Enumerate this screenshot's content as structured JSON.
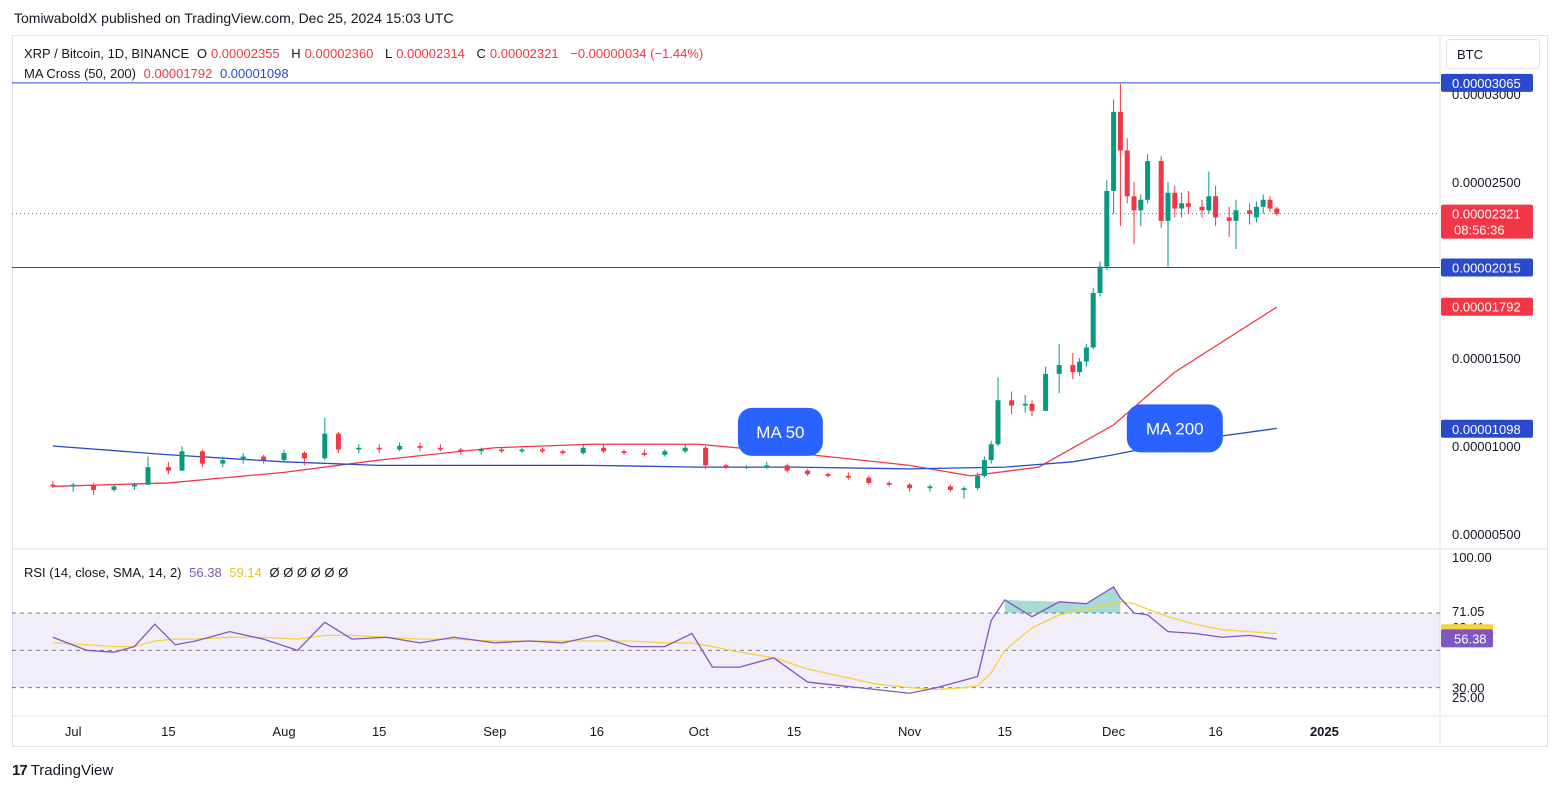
{
  "header": {
    "publisher": "TomiwaboldX published on TradingView.com, Dec 25, 2024 15:03 UTC"
  },
  "legend": {
    "symbol": "XRP / Bitcoin, 1D, BINANCE",
    "o_label": "O",
    "o_value": "0.00002355",
    "h_label": "H",
    "h_value": "0.00002360",
    "l_label": "L",
    "l_value": "0.00002314",
    "c_label": "C",
    "c_value": "0.00002321",
    "change": "−0.00000034 (−1.44%)",
    "ma_label": "MA Cross (50, 200)",
    "ma50_value": "0.00001792",
    "ma200_value": "0.00001098"
  },
  "rsi_legend": {
    "label": "RSI (14, close, SMA, 14, 2)",
    "rsi_value": "56.38",
    "sma_value": "59.14",
    "empty_values": "Ø Ø Ø Ø Ø Ø"
  },
  "currency_button": "BTC",
  "footer": {
    "brand": "TradingView",
    "brand_mark": "17"
  },
  "colors": {
    "up": "#089981",
    "down": "#f23645",
    "ma50": "#f23645",
    "ma200": "#2a4ac7",
    "rsi": "#7e57c2",
    "rsi_sma": "#f5d33b",
    "hline": "#2a4ac7"
  },
  "chart_data": {
    "type": "candlestick",
    "title": "XRP / Bitcoin, 1D, BINANCE",
    "y_axis_labels": [
      "0.00003000",
      "0.00002500",
      "0.00001500",
      "0.00001000",
      "0.00000500"
    ],
    "y_axis_values": [
      3e-05,
      2.5e-05,
      1.5e-05,
      1e-05,
      5e-06
    ],
    "ylim": [
      4.2e-06,
      3.28e-05
    ],
    "x_axis_labels": [
      "Jul",
      "15",
      "Aug",
      "15",
      "Sep",
      "16",
      "Oct",
      "15",
      "Nov",
      "15",
      "Dec",
      "16",
      "2025"
    ],
    "x_axis_dates": [
      "2024-07-01",
      "2024-07-15",
      "2024-08-01",
      "2024-08-15",
      "2024-09-01",
      "2024-09-16",
      "2024-10-01",
      "2024-10-15",
      "2024-11-01",
      "2024-11-15",
      "2024-12-01",
      "2024-12-16",
      "2025-01-01"
    ],
    "date_range": [
      "2024-06-28",
      "2024-12-25"
    ],
    "horizontal_lines": [
      {
        "value": 3.065e-05,
        "label": "0.00003065"
      },
      {
        "value": 2.015e-05,
        "label": "0.00002015"
      }
    ],
    "price_labels": [
      {
        "value": 2.321e-05,
        "label": "0.00002321",
        "sub": "08:56:36",
        "kind": "last"
      },
      {
        "value": 1.792e-05,
        "label": "0.00001792",
        "kind": "ma50"
      },
      {
        "value": 1.098e-05,
        "label": "0.00001098",
        "kind": "ma200"
      }
    ],
    "annotations": [
      {
        "text": "MA 50",
        "date": "2024-10-13",
        "value": 1.08e-05
      },
      {
        "text": "MA 200",
        "date": "2024-12-10",
        "value": 1.1e-05
      }
    ],
    "series": [
      {
        "name": "MA 50",
        "dates": [
          "2024-06-28",
          "2024-07-15",
          "2024-08-01",
          "2024-08-15",
          "2024-09-01",
          "2024-09-15",
          "2024-10-01",
          "2024-10-15",
          "2024-11-01",
          "2024-11-10",
          "2024-11-20",
          "2024-12-01",
          "2024-12-10",
          "2024-12-25"
        ],
        "values": [
          7.7e-06,
          7.9e-06,
          8.5e-06,
          9.2e-06,
          9.9e-06,
          1.01e-05,
          1.01e-05,
          9.6e-06,
          8.9e-06,
          8.3e-06,
          8.8e-06,
          1.12e-05,
          1.42e-05,
          1.79e-05
        ]
      },
      {
        "name": "MA 200",
        "dates": [
          "2024-06-28",
          "2024-07-15",
          "2024-08-01",
          "2024-08-15",
          "2024-09-01",
          "2024-09-15",
          "2024-10-01",
          "2024-10-15",
          "2024-11-01",
          "2024-11-15",
          "2024-11-25",
          "2024-12-01",
          "2024-12-10",
          "2024-12-25"
        ],
        "values": [
          1e-05,
          9.5e-06,
          9.1e-06,
          8.9e-06,
          8.9e-06,
          8.9e-06,
          8.8e-06,
          8.8e-06,
          8.7e-06,
          8.8e-06,
          9.1e-06,
          9.5e-06,
          1.02e-05,
          1.1e-05
        ]
      }
    ],
    "candles": [
      [
        "2024-06-28",
        7.8e-06,
        8e-06,
        7.6e-06,
        7.7e-06
      ],
      [
        "2024-07-01",
        7.7e-06,
        7.9e-06,
        7.4e-06,
        7.8e-06
      ],
      [
        "2024-07-04",
        7.8e-06,
        7.9e-06,
        7.2e-06,
        7.5e-06
      ],
      [
        "2024-07-07",
        7.5e-06,
        7.8e-06,
        7.4e-06,
        7.7e-06
      ],
      [
        "2024-07-10",
        7.7e-06,
        7.9e-06,
        7.5e-06,
        7.8e-06
      ],
      [
        "2024-07-12",
        7.8e-06,
        9.4e-06,
        7.8e-06,
        8.8e-06
      ],
      [
        "2024-07-15",
        8.8e-06,
        9.1e-06,
        8.4e-06,
        8.6e-06
      ],
      [
        "2024-07-17",
        8.6e-06,
        1e-05,
        8.6e-06,
        9.7e-06
      ],
      [
        "2024-07-20",
        9.7e-06,
        9.8e-06,
        8.8e-06,
        9e-06
      ],
      [
        "2024-07-23",
        9e-06,
        9.4e-06,
        8.8e-06,
        9.2e-06
      ],
      [
        "2024-07-26",
        9.2e-06,
        9.6e-06,
        9e-06,
        9.4e-06
      ],
      [
        "2024-07-29",
        9.4e-06,
        9.5e-06,
        9e-06,
        9.2e-06
      ],
      [
        "2024-08-01",
        9.2e-06,
        9.8e-06,
        9.1e-06,
        9.6e-06
      ],
      [
        "2024-08-04",
        9.6e-06,
        9.7e-06,
        8.9e-06,
        9.3e-06
      ],
      [
        "2024-08-07",
        9.3e-06,
        1.16e-05,
        9.2e-06,
        1.07e-05
      ],
      [
        "2024-08-09",
        1.07e-05,
        1.08e-05,
        9.6e-06,
        9.8e-06
      ],
      [
        "2024-08-12",
        9.8e-06,
        1.01e-05,
        9.6e-06,
        9.9e-06
      ],
      [
        "2024-08-15",
        9.9e-06,
        1.01e-05,
        9.6e-06,
        9.8e-06
      ],
      [
        "2024-08-18",
        9.8e-06,
        1.02e-05,
        9.7e-06,
        1e-05
      ],
      [
        "2024-08-21",
        1e-05,
        1.02e-05,
        9.7e-06,
        9.9e-06
      ],
      [
        "2024-08-24",
        9.9e-06,
        1.01e-05,
        9.7e-06,
        9.8e-06
      ],
      [
        "2024-08-27",
        9.8e-06,
        9.9e-06,
        9.5e-06,
        9.7e-06
      ],
      [
        "2024-08-30",
        9.7e-06,
        9.9e-06,
        9.5e-06,
        9.8e-06
      ],
      [
        "2024-09-02",
        9.8e-06,
        9.9e-06,
        9.6e-06,
        9.7e-06
      ],
      [
        "2024-09-05",
        9.7e-06,
        9.9e-06,
        9.6e-06,
        9.8e-06
      ],
      [
        "2024-09-08",
        9.8e-06,
        9.9e-06,
        9.6e-06,
        9.7e-06
      ],
      [
        "2024-09-11",
        9.7e-06,
        9.8e-06,
        9.5e-06,
        9.6e-06
      ],
      [
        "2024-09-14",
        9.6e-06,
        1.01e-05,
        9.5e-06,
        9.9e-06
      ],
      [
        "2024-09-17",
        9.9e-06,
        1.01e-05,
        9.6e-06,
        9.7e-06
      ],
      [
        "2024-09-20",
        9.7e-06,
        9.8e-06,
        9.5e-06,
        9.6e-06
      ],
      [
        "2024-09-23",
        9.6e-06,
        9.8e-06,
        9.4e-06,
        9.5e-06
      ],
      [
        "2024-09-26",
        9.5e-06,
        9.8e-06,
        9.4e-06,
        9.7e-06
      ],
      [
        "2024-09-29",
        9.7e-06,
        1.01e-05,
        9.6e-06,
        9.9e-06
      ],
      [
        "2024-10-02",
        9.9e-06,
        1e-05,
        8.7e-06,
        8.9e-06
      ],
      [
        "2024-10-05",
        8.9e-06,
        9e-06,
        8.7e-06,
        8.8e-06
      ],
      [
        "2024-10-08",
        8.8e-06,
        8.9e-06,
        8.7e-06,
        8.8e-06
      ],
      [
        "2024-10-11",
        8.8e-06,
        9.1e-06,
        8.7e-06,
        8.9e-06
      ],
      [
        "2024-10-14",
        8.9e-06,
        9e-06,
        8.5e-06,
        8.6e-06
      ],
      [
        "2024-10-17",
        8.6e-06,
        8.7e-06,
        8.3e-06,
        8.4e-06
      ],
      [
        "2024-10-20",
        8.4e-06,
        8.5e-06,
        8.2e-06,
        8.3e-06
      ],
      [
        "2024-10-23",
        8.3e-06,
        8.5e-06,
        8.1e-06,
        8.2e-06
      ],
      [
        "2024-10-26",
        8.2e-06,
        8.3e-06,
        7.8e-06,
        7.9e-06
      ],
      [
        "2024-10-29",
        7.9e-06,
        8e-06,
        7.7e-06,
        7.8e-06
      ],
      [
        "2024-11-01",
        7.8e-06,
        7.9e-06,
        7.4e-06,
        7.6e-06
      ],
      [
        "2024-11-04",
        7.6e-06,
        7.8e-06,
        7.4e-06,
        7.7e-06
      ],
      [
        "2024-11-07",
        7.7e-06,
        7.8e-06,
        7.4e-06,
        7.5e-06
      ],
      [
        "2024-11-09",
        7.5e-06,
        7.7e-06,
        7e-06,
        7.6e-06
      ],
      [
        "2024-11-11",
        7.6e-06,
        8.5e-06,
        7.5e-06,
        8.3e-06
      ],
      [
        "2024-11-12",
        8.3e-06,
        9.4e-06,
        8.2e-06,
        9.2e-06
      ],
      [
        "2024-11-13",
        9.2e-06,
        1.03e-05,
        9e-06,
        1.01e-05
      ],
      [
        "2024-11-14",
        1.01e-05,
        1.39e-05,
        1e-05,
        1.26e-05
      ],
      [
        "2024-11-16",
        1.26e-05,
        1.31e-05,
        1.18e-05,
        1.23e-05
      ],
      [
        "2024-11-18",
        1.23e-05,
        1.29e-05,
        1.19e-05,
        1.24e-05
      ],
      [
        "2024-11-19",
        1.24e-05,
        1.26e-05,
        1.17e-05,
        1.2e-05
      ],
      [
        "2024-11-21",
        1.2e-05,
        1.45e-05,
        1.2e-05,
        1.41e-05
      ],
      [
        "2024-11-23",
        1.41e-05,
        1.58e-05,
        1.3e-05,
        1.46e-05
      ],
      [
        "2024-11-25",
        1.46e-05,
        1.53e-05,
        1.38e-05,
        1.42e-05
      ],
      [
        "2024-11-26",
        1.42e-05,
        1.5e-05,
        1.4e-05,
        1.48e-05
      ],
      [
        "2024-11-27",
        1.48e-05,
        1.58e-05,
        1.45e-05,
        1.56e-05
      ],
      [
        "2024-11-28",
        1.56e-05,
        1.9e-05,
        1.55e-05,
        1.87e-05
      ],
      [
        "2024-11-29",
        1.87e-05,
        2.05e-05,
        1.85e-05,
        2.02e-05
      ],
      [
        "2024-11-30",
        2.02e-05,
        2.51e-05,
        2e-05,
        2.45e-05
      ],
      [
        "2024-12-01",
        2.45e-05,
        2.97e-05,
        2.32e-05,
        2.9e-05
      ],
      [
        "2024-12-02",
        2.9e-05,
        3.06e-05,
        2.25e-05,
        2.68e-05
      ],
      [
        "2024-12-03",
        2.68e-05,
        2.75e-05,
        2.38e-05,
        2.42e-05
      ],
      [
        "2024-12-04",
        2.42e-05,
        2.5e-05,
        2.15e-05,
        2.34e-05
      ],
      [
        "2024-12-05",
        2.34e-05,
        2.43e-05,
        2.25e-05,
        2.4e-05
      ],
      [
        "2024-12-06",
        2.4e-05,
        2.66e-05,
        2.38e-05,
        2.62e-05
      ],
      [
        "2024-12-08",
        2.62e-05,
        2.65e-05,
        2.24e-05,
        2.28e-05
      ],
      [
        "2024-12-09",
        2.28e-05,
        2.5e-05,
        2.02e-05,
        2.44e-05
      ],
      [
        "2024-12-10",
        2.44e-05,
        2.48e-05,
        2.3e-05,
        2.35e-05
      ],
      [
        "2024-12-11",
        2.35e-05,
        2.44e-05,
        2.3e-05,
        2.38e-05
      ],
      [
        "2024-12-12",
        2.38e-05,
        2.45e-05,
        2.32e-05,
        2.36e-05
      ],
      [
        "2024-12-14",
        2.36e-05,
        2.4e-05,
        2.3e-05,
        2.34e-05
      ],
      [
        "2024-12-15",
        2.34e-05,
        2.56e-05,
        2.32e-05,
        2.42e-05
      ],
      [
        "2024-12-16",
        2.42e-05,
        2.48e-05,
        2.25e-05,
        2.3e-05
      ],
      [
        "2024-12-18",
        2.3e-05,
        2.36e-05,
        2.19e-05,
        2.28e-05
      ],
      [
        "2024-12-19",
        2.28e-05,
        2.4e-05,
        2.12e-05,
        2.34e-05
      ],
      [
        "2024-12-21",
        2.34e-05,
        2.38e-05,
        2.26e-05,
        2.32e-05
      ],
      [
        "2024-12-22",
        2.3e-05,
        2.39e-05,
        2.27e-05,
        2.36e-05
      ],
      [
        "2024-12-23",
        2.36e-05,
        2.43e-05,
        2.32e-05,
        2.4e-05
      ],
      [
        "2024-12-24",
        2.4e-05,
        2.42e-05,
        2.33e-05,
        2.35e-05
      ],
      [
        "2024-12-25",
        2.35e-05,
        2.36e-05,
        2.31e-05,
        2.32e-05
      ]
    ],
    "rsi": {
      "axis_labels": [
        "100.00",
        "71.05",
        "62.41",
        "30.00",
        "25.00"
      ],
      "axis_values": [
        100,
        71.05,
        62.41,
        30,
        25
      ],
      "ylim": [
        20,
        100
      ],
      "bands": [
        70,
        50,
        30
      ],
      "last_labels": [
        {
          "value": 59.14,
          "label": "59.14",
          "kind": "sma"
        },
        {
          "value": 56.38,
          "label": "56.38",
          "kind": "rsi"
        }
      ],
      "dates": [
        "2024-06-28",
        "2024-07-03",
        "2024-07-07",
        "2024-07-10",
        "2024-07-13",
        "2024-07-16",
        "2024-07-19",
        "2024-07-24",
        "2024-07-29",
        "2024-08-03",
        "2024-08-07",
        "2024-08-11",
        "2024-08-16",
        "2024-08-21",
        "2024-08-26",
        "2024-09-01",
        "2024-09-06",
        "2024-09-11",
        "2024-09-16",
        "2024-09-21",
        "2024-09-26",
        "2024-09-30",
        "2024-10-03",
        "2024-10-07",
        "2024-10-12",
        "2024-10-17",
        "2024-10-22",
        "2024-10-27",
        "2024-11-01",
        "2024-11-05",
        "2024-11-09",
        "2024-11-11",
        "2024-11-13",
        "2024-11-15",
        "2024-11-19",
        "2024-11-23",
        "2024-11-27",
        "2024-12-01",
        "2024-12-02",
        "2024-12-04",
        "2024-12-06",
        "2024-12-09",
        "2024-12-13",
        "2024-12-17",
        "2024-12-21",
        "2024-12-25"
      ],
      "rsi_values": [
        57,
        50,
        49,
        52,
        64,
        53,
        55,
        60,
        56,
        50,
        65,
        56,
        57,
        54,
        57,
        54,
        55,
        54,
        58,
        52,
        52,
        59,
        41,
        41,
        46,
        33,
        31,
        29,
        27,
        30,
        34,
        36,
        66,
        77,
        68,
        76,
        75,
        84,
        78,
        70,
        69,
        60,
        59,
        57,
        58,
        56
      ],
      "sma_values": [
        54,
        53,
        52,
        52,
        55,
        56,
        56,
        57,
        57,
        56,
        58,
        58,
        57,
        56,
        56,
        55,
        55,
        55,
        55,
        55,
        54,
        54,
        52,
        49,
        46,
        40,
        36,
        32,
        30,
        29,
        30,
        31,
        38,
        50,
        62,
        69,
        72,
        75,
        76,
        75,
        72,
        68,
        64,
        61,
        60,
        59
      ]
    }
  }
}
